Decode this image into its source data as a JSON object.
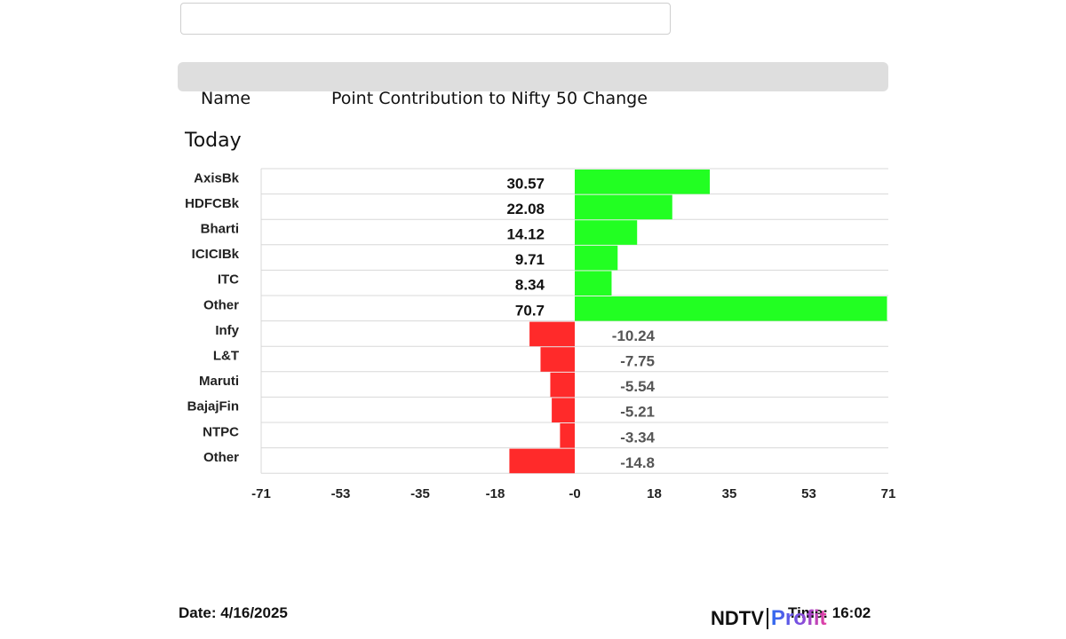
{
  "search": {
    "value": "",
    "placeholder": ""
  },
  "header": {
    "name_label": "Name",
    "contribution_label": "Point Contribution to Nifty 50 Change"
  },
  "section": {
    "title": "Today"
  },
  "chart_data": {
    "type": "bar",
    "orientation": "horizontal",
    "title": "Point Contribution to Nifty 50 Change",
    "categories": [
      "AxisBk",
      "HDFCBk",
      "Bharti",
      "ICICIBk",
      "ITC",
      "Other",
      "Infy",
      "L&T",
      "Maruti",
      "BajajFin",
      "NTPC",
      "Other"
    ],
    "values": [
      30.57,
      22.08,
      14.12,
      9.71,
      8.34,
      70.7,
      -10.24,
      -7.75,
      -5.54,
      -5.21,
      -3.34,
      -14.8
    ],
    "value_labels": [
      "30.57",
      "22.08",
      "14.12",
      "9.71",
      "8.34",
      "70.7",
      "-10.24",
      "-7.75",
      "-5.54",
      "-5.21",
      "-3.34",
      "-14.8"
    ],
    "xlim": [
      -71,
      71
    ],
    "xticks": [
      "-71",
      "-53",
      "-35",
      "-18",
      "-0",
      "18",
      "35",
      "53",
      "71"
    ],
    "xtick_values": [
      -71,
      -53,
      -35,
      -18,
      0,
      18,
      35,
      53,
      71
    ],
    "colors": {
      "positive": "#22ff22",
      "negative": "#ff2a2a",
      "grid": "#d8d8d8"
    },
    "grid": true
  },
  "footer": {
    "date": "Date: 4/16/2025",
    "time": "Time: 16:02",
    "logo_left": "NDTV",
    "logo_right": "Profit"
  }
}
